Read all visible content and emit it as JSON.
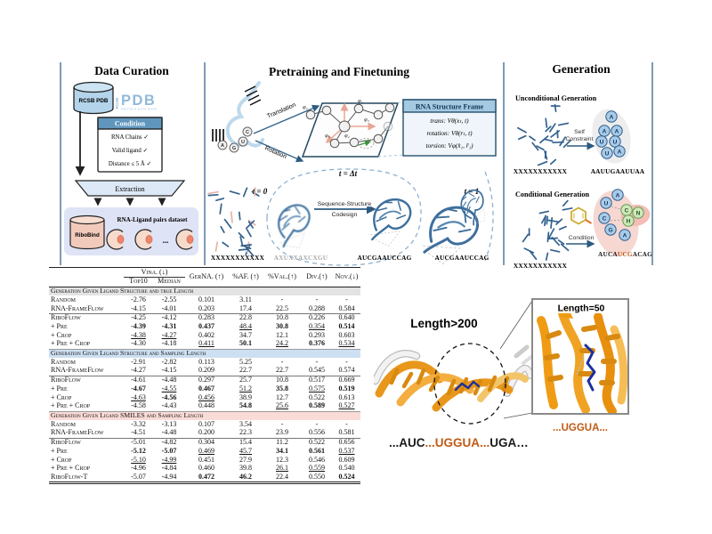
{
  "colors": {
    "divider": "#7b9cb8",
    "seq_orange": "#c05a15",
    "rna_orange": "#ef9c14",
    "ligand_blue": "#1b2f9c",
    "section_gray": "#e3e3e3",
    "section_blue": "#cddff2",
    "section_pink": "#fadbd7"
  },
  "panels": {
    "curation": {
      "title": "Data Curation",
      "db_label": "RCSB PDB",
      "pdb_logo": {
        "rcsb": "RCSB",
        "pdb": "PDB",
        "sub": "PROTEIN DATA BANK"
      },
      "condition": {
        "header": "Condition",
        "items": [
          "RNA Chains ✓",
          "Valid ligand ✓",
          "Distance ≤ 5 Å ✓"
        ]
      },
      "extraction_label": "Extraction",
      "dataset": {
        "db_label": "RiboBind",
        "title": "RNA-Ligand pairs dataset",
        "ellipsis": "..."
      }
    },
    "pretraining": {
      "title": "Pretraining and Finetuning",
      "translation_label": "Translation",
      "rotation_label": "Rotation",
      "nucleotides": [
        "A",
        "G",
        "U",
        "C"
      ],
      "phi_labels": [
        "φ₂",
        "φ₁",
        "φ₃",
        "φ₅",
        "φ₄"
      ],
      "frame_box": {
        "header": "RNA Structure Frame",
        "rows": [
          "trans: Vθ(xₜ, t)",
          "rotation: Vθ(rₜ, t)",
          "torsion: Vφ(x̂₁, r̂₁)"
        ]
      },
      "t0_label": "t = 0",
      "dt_label": "t = Δt",
      "t1_label": "t = 1",
      "seq_t0": "XXXXXXXXXXX",
      "seq_noisy": "AXUXXAXCXGU",
      "seq_mid": "AUCGAAUCCAG",
      "seq_t1": "AUCGAAUCCAG",
      "codesign_line1": "Sequence-Structure",
      "codesign_line2": "Codesign"
    },
    "generation": {
      "title": "Generation",
      "unconditional": {
        "heading": "Unconditional Generation",
        "input_seq": "XXXXXXXXXXX",
        "arrow_label_1": "Self",
        "arrow_label_2": "Constraint",
        "letters": [
          "A",
          "A",
          "A",
          "U",
          "U",
          "U",
          "A"
        ],
        "output_seq": "AAUUGAAUUAA"
      },
      "conditional": {
        "heading": "Conditional Generation",
        "input_seq": "XXXXXXXXXXX",
        "arrow_label": "Condition",
        "letters_rna": [
          "A",
          "U",
          "C",
          "G",
          "A"
        ],
        "letters_ligand": [
          "C",
          "N",
          "H"
        ],
        "output_prefix": "AUCA",
        "output_highlight": "UCG",
        "output_suffix": "ACAG"
      }
    }
  },
  "table": {
    "col_group": "Vina. (↓)",
    "sub_columns": [
      "Top10",
      "Median"
    ],
    "single_columns": [
      "GerNA. (↑)",
      "%AF. (↑)",
      "%Val.(↑)",
      "Div.(↑)",
      "Nov.(↓)"
    ],
    "sections": [
      {
        "header": "Generation Given Ligand Structure and true Length",
        "color": "#e3e3e3",
        "groups": [
          [
            {
              "label": "Random",
              "cells": [
                [
                  "-2.76",
                  ""
                ],
                [
                  "-2.55",
                  ""
                ],
                [
                  "0.101",
                  ""
                ],
                [
                  "3.11",
                  ""
                ],
                [
                  "-",
                  ""
                ],
                [
                  "-",
                  ""
                ],
                [
                  "-",
                  ""
                ]
              ]
            },
            {
              "label": "RNA-FrameFlow",
              "cells": [
                [
                  "-4.15",
                  ""
                ],
                [
                  "-4.01",
                  ""
                ],
                [
                  "0.203",
                  ""
                ],
                [
                  "17.4",
                  ""
                ],
                [
                  "22.5",
                  ""
                ],
                [
                  "0.288",
                  ""
                ],
                [
                  "0.584",
                  ""
                ]
              ]
            }
          ],
          [
            {
              "label": "RiboFlow",
              "cells": [
                [
                  "-4.25",
                  ""
                ],
                [
                  "-4.12",
                  ""
                ],
                [
                  "0.283",
                  ""
                ],
                [
                  "22.8",
                  ""
                ],
                [
                  "10.8",
                  ""
                ],
                [
                  "0.226",
                  ""
                ],
                [
                  "0.640",
                  ""
                ]
              ]
            },
            {
              "label": "+ Pre",
              "cells": [
                [
                  "-4.39",
                  "b"
                ],
                [
                  "-4.31",
                  "b"
                ],
                [
                  "0.437",
                  "b"
                ],
                [
                  "48.4",
                  "u"
                ],
                [
                  "30.8",
                  "b"
                ],
                [
                  "0.354",
                  "u"
                ],
                [
                  "0.514",
                  "b"
                ]
              ]
            },
            {
              "label": "+ Crop",
              "cells": [
                [
                  "-4.38",
                  "u"
                ],
                [
                  "-4.27",
                  "u"
                ],
                [
                  "0.402",
                  ""
                ],
                [
                  "34.7",
                  ""
                ],
                [
                  "12.1",
                  ""
                ],
                [
                  "0.293",
                  ""
                ],
                [
                  "0.603",
                  ""
                ]
              ]
            },
            {
              "label": "+ Pre + Crop",
              "cells": [
                [
                  "-4.30",
                  ""
                ],
                [
                  "-4.18",
                  ""
                ],
                [
                  "0.411",
                  "u"
                ],
                [
                  "50.1",
                  "b"
                ],
                [
                  "24.2",
                  "u"
                ],
                [
                  "0.376",
                  "b"
                ],
                [
                  "0.534",
                  "u"
                ]
              ]
            }
          ]
        ]
      },
      {
        "header": "Generation Given Ligand Structure and Sampling Length",
        "color": "#cddff2",
        "groups": [
          [
            {
              "label": "Random",
              "cells": [
                [
                  "-2.91",
                  ""
                ],
                [
                  "-2.82",
                  ""
                ],
                [
                  "0.113",
                  ""
                ],
                [
                  "5.25",
                  ""
                ],
                [
                  "-",
                  ""
                ],
                [
                  "-",
                  ""
                ],
                [
                  "-",
                  ""
                ]
              ]
            },
            {
              "label": "RNA-FrameFlow",
              "cells": [
                [
                  "-4.27",
                  ""
                ],
                [
                  "-4.15",
                  ""
                ],
                [
                  "0.209",
                  ""
                ],
                [
                  "22.7",
                  ""
                ],
                [
                  "22.7",
                  ""
                ],
                [
                  "0.545",
                  ""
                ],
                [
                  "0.574",
                  ""
                ]
              ]
            }
          ],
          [
            {
              "label": "RiboFlow",
              "cells": [
                [
                  "-4.61",
                  ""
                ],
                [
                  "-4.48",
                  ""
                ],
                [
                  "0.297",
                  ""
                ],
                [
                  "25.7",
                  ""
                ],
                [
                  "10.8",
                  ""
                ],
                [
                  "0.517",
                  ""
                ],
                [
                  "0.669",
                  ""
                ]
              ]
            },
            {
              "label": "+ Pre",
              "cells": [
                [
                  "-4.67",
                  "b"
                ],
                [
                  "-4.55",
                  "u"
                ],
                [
                  "0.467",
                  "b"
                ],
                [
                  "51.2",
                  "u"
                ],
                [
                  "35.8",
                  "b"
                ],
                [
                  "0.575",
                  "u"
                ],
                [
                  "0.519",
                  "b"
                ]
              ]
            },
            {
              "label": "+ Crop",
              "cells": [
                [
                  "-4.63",
                  "u"
                ],
                [
                  "-4.56",
                  "b"
                ],
                [
                  "0.456",
                  "u"
                ],
                [
                  "38.9",
                  ""
                ],
                [
                  "12.7",
                  ""
                ],
                [
                  "0.522",
                  ""
                ],
                [
                  "0.613",
                  ""
                ]
              ]
            },
            {
              "label": "+ Pre + Crop",
              "cells": [
                [
                  "-4.58",
                  ""
                ],
                [
                  "-4.43",
                  ""
                ],
                [
                  "0.448",
                  ""
                ],
                [
                  "54.8",
                  "b"
                ],
                [
                  "25.6",
                  "u"
                ],
                [
                  "0.589",
                  "b"
                ],
                [
                  "0.527",
                  "u"
                ]
              ]
            }
          ]
        ]
      },
      {
        "header": "Generation Given Ligand SMILES and Sampling Length",
        "color": "#fadbd7",
        "groups": [
          [
            {
              "label": "Random",
              "cells": [
                [
                  "-3.32",
                  ""
                ],
                [
                  "-3.13",
                  ""
                ],
                [
                  "0.107",
                  ""
                ],
                [
                  "3.54",
                  ""
                ],
                [
                  "-",
                  ""
                ],
                [
                  "-",
                  ""
                ],
                [
                  "-",
                  ""
                ]
              ]
            },
            {
              "label": "RNA-FrameFlow",
              "cells": [
                [
                  "-4.51",
                  ""
                ],
                [
                  "-4.48",
                  ""
                ],
                [
                  "0.200",
                  ""
                ],
                [
                  "22.3",
                  ""
                ],
                [
                  "23.9",
                  ""
                ],
                [
                  "0.556",
                  ""
                ],
                [
                  "0.581",
                  ""
                ]
              ]
            }
          ],
          [
            {
              "label": "RiboFlow",
              "cells": [
                [
                  "-5.01",
                  ""
                ],
                [
                  "-4.82",
                  ""
                ],
                [
                  "0.304",
                  ""
                ],
                [
                  "15.4",
                  ""
                ],
                [
                  "11.2",
                  ""
                ],
                [
                  "0.522",
                  ""
                ],
                [
                  "0.656",
                  ""
                ]
              ]
            },
            {
              "label": "+ Pre",
              "cells": [
                [
                  "-5.12",
                  "b"
                ],
                [
                  "-5.07",
                  "b"
                ],
                [
                  "0.469",
                  "u"
                ],
                [
                  "45.7",
                  "u"
                ],
                [
                  "34.1",
                  "b"
                ],
                [
                  "0.561",
                  "b"
                ],
                [
                  "0.537",
                  "u"
                ]
              ]
            },
            {
              "label": "+ Crop",
              "cells": [
                [
                  "-5.10",
                  "u"
                ],
                [
                  "-4.99",
                  "u"
                ],
                [
                  "0.451",
                  ""
                ],
                [
                  "27.9",
                  ""
                ],
                [
                  "12.3",
                  ""
                ],
                [
                  "0.546",
                  ""
                ],
                [
                  "0.609",
                  ""
                ]
              ]
            },
            {
              "label": "+ Pre + Crop",
              "cells": [
                [
                  "-4.96",
                  ""
                ],
                [
                  "-4.84",
                  ""
                ],
                [
                  "0.460",
                  ""
                ],
                [
                  "39.8",
                  ""
                ],
                [
                  "26.1",
                  "u"
                ],
                [
                  "0.559",
                  "u"
                ],
                [
                  "0.540",
                  ""
                ]
              ]
            },
            {
              "label": "RiboFlow-T",
              "cells": [
                [
                  "-5.07",
                  ""
                ],
                [
                  "-4.94",
                  ""
                ],
                [
                  "0.472",
                  "b"
                ],
                [
                  "46.2",
                  "b"
                ],
                [
                  "22.4",
                  ""
                ],
                [
                  "0.550",
                  ""
                ],
                [
                  "0.524",
                  "b"
                ]
              ]
            }
          ]
        ]
      }
    ]
  },
  "length_figure": {
    "big_label": "Length>200",
    "zoom_label": "Length=50",
    "zoom_seq": "...UGGUA...",
    "seq_parts": [
      {
        "t": "...AUC",
        "c": "#1b1b1b"
      },
      {
        "t": "...",
        "c": "#c05a15"
      },
      {
        "t": "UGGUA",
        "c": "#c05a15"
      },
      {
        "t": "...",
        "c": "#c05a15"
      },
      {
        "t": "UGA…",
        "c": "#1b1b1b"
      }
    ]
  }
}
